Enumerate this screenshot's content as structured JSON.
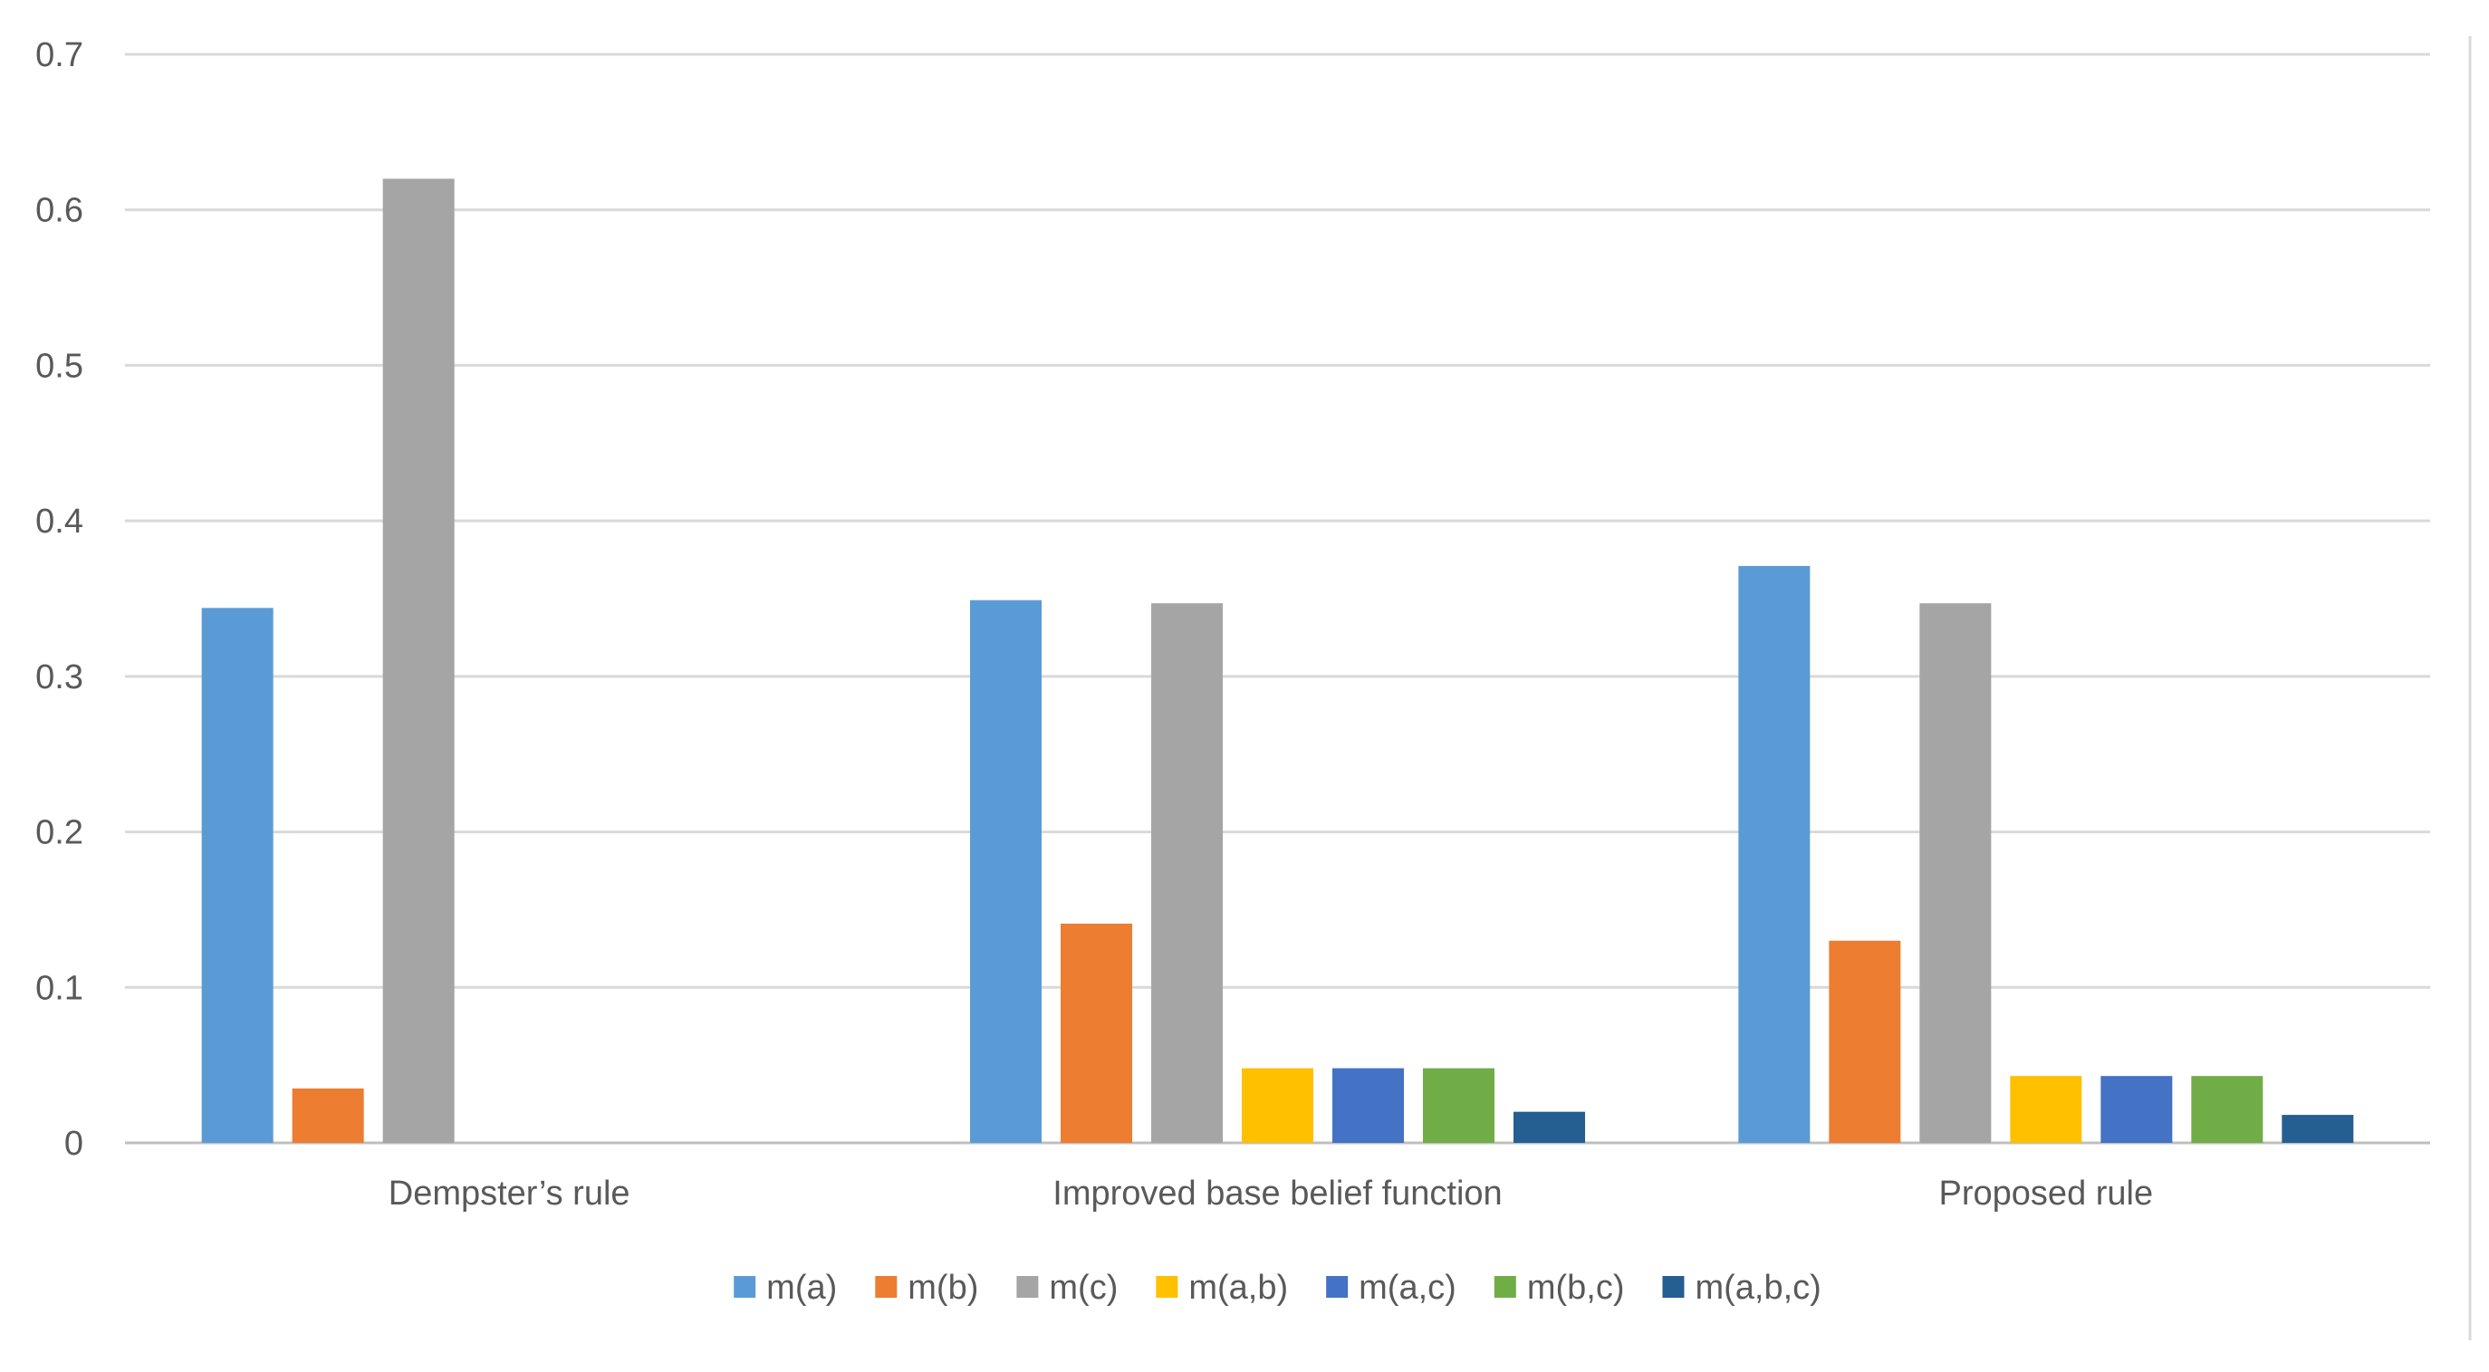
{
  "chart_data": {
    "type": "bar",
    "title": "",
    "xlabel": "",
    "ylabel": "",
    "categories": [
      "Dempster’s rule",
      "Improved base belief function",
      "Proposed rule"
    ],
    "ylim": [
      0,
      0.7
    ],
    "yticks": [
      0,
      0.1,
      0.2,
      0.3,
      0.4,
      0.5,
      0.6,
      0.7
    ],
    "ytick_labels": [
      "0",
      "0.1",
      "0.2",
      "0.3",
      "0.4",
      "0.5",
      "0.6",
      "0.7"
    ],
    "grid": true,
    "legend_position": "bottom",
    "series": [
      {
        "name": "m(a)",
        "color": "#5b9bd5",
        "values": [
          0.344,
          0.349,
          0.371
        ]
      },
      {
        "name": "m(b)",
        "color": "#ed7d31",
        "values": [
          0.035,
          0.141,
          0.13
        ]
      },
      {
        "name": "m(c)",
        "color": "#a5a5a5",
        "values": [
          0.62,
          0.347,
          0.347
        ]
      },
      {
        "name": "m(a,b)",
        "color": "#ffc000",
        "values": [
          null,
          0.048,
          0.043
        ]
      },
      {
        "name": "m(a,c)",
        "color": "#4472c4",
        "values": [
          null,
          0.048,
          0.043
        ]
      },
      {
        "name": "m(b,c)",
        "color": "#70ad47",
        "values": [
          null,
          0.048,
          0.043
        ]
      },
      {
        "name": "m(a,b,c)",
        "color": "#255e91",
        "values": [
          null,
          0.02,
          0.018
        ]
      }
    ]
  }
}
